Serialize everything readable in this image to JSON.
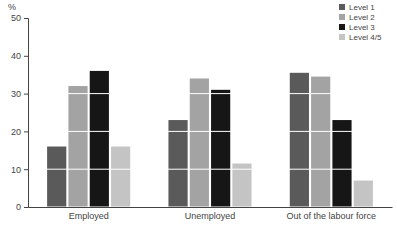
{
  "chart_data": {
    "type": "bar",
    "y_label": "%",
    "categories": [
      "Employed",
      "Unemployed",
      "Out of the labour force"
    ],
    "series": [
      {
        "name": "Level 1",
        "color": "#5a5a5a",
        "values": [
          16,
          23,
          35.5
        ]
      },
      {
        "name": "Level 2",
        "color": "#a3a3a3",
        "values": [
          32,
          34,
          34.5
        ]
      },
      {
        "name": "Level 3",
        "color": "#161616",
        "values": [
          36,
          31,
          23
        ]
      },
      {
        "name": "Level 4/5",
        "color": "#c4c4c4",
        "values": [
          16,
          11.5,
          7
        ]
      }
    ],
    "ylim": [
      0,
      50
    ],
    "yticks": [
      0,
      10,
      20,
      30,
      40,
      50
    ],
    "grid": true,
    "legend": "top-right"
  }
}
